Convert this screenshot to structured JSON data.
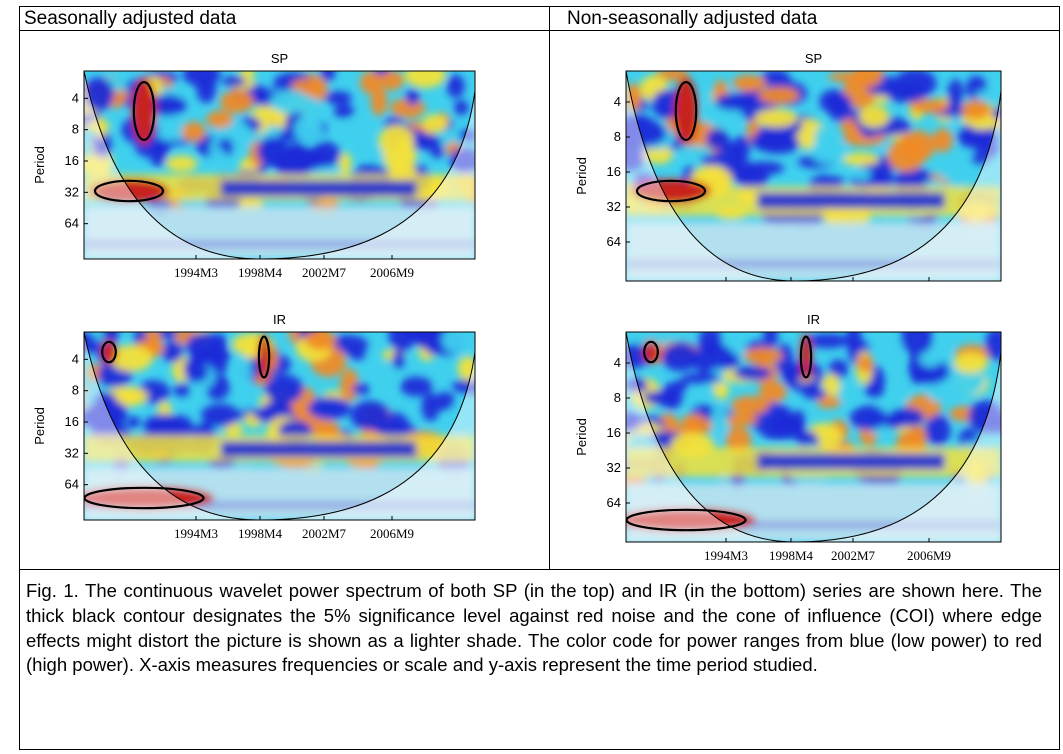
{
  "columns": {
    "left_heading": "Seasonally adjusted data",
    "right_heading": "Non-seasonally adjusted data"
  },
  "panels": [
    {
      "id": "sa-sp",
      "title": "SP",
      "ylabel": "Period",
      "yticks": [
        "4",
        "8",
        "16",
        "32",
        "64"
      ],
      "xticks": [
        "1994M3",
        "1998M4",
        "2002M7",
        "2006M9"
      ]
    },
    {
      "id": "sa-ir",
      "title": "IR",
      "ylabel": "Period",
      "yticks": [
        "4",
        "8",
        "16",
        "32",
        "64"
      ],
      "xticks": [
        "1994M3",
        "1998M4",
        "2002M7",
        "2006M9"
      ]
    },
    {
      "id": "nsa-sp",
      "title": "SP",
      "ylabel": "Period",
      "yticks": [
        "4",
        "8",
        "16",
        "32",
        "64"
      ],
      "xticks": [
        "1994M3",
        "1998M4",
        "2002M7",
        "2006M9"
      ]
    },
    {
      "id": "nsa-ir",
      "title": "IR",
      "ylabel": "Period",
      "yticks": [
        "4",
        "8",
        "16",
        "32",
        "64"
      ],
      "xticks": [
        "1994M3",
        "1998M4",
        "2002M7",
        "2006M9"
      ]
    }
  ],
  "colors": {
    "low_power": "#1c2ad8",
    "mid_power": "#3fd0ee",
    "mid_high_power": "#f3e23a",
    "high_power": "#c8241c"
  },
  "caption": "Fig. 1. The continuous wavelet power spectrum of both SP (in the top) and IR (in the bottom) series are shown here. The thick black contour designates the 5% significance level against red noise and the cone of influence (COI) where edge effects might distort the picture is shown as a lighter shade. The color code for power ranges from blue (low power) to red (high power). X-axis measures frequencies or scale and y-axis represent the time period studied."
}
